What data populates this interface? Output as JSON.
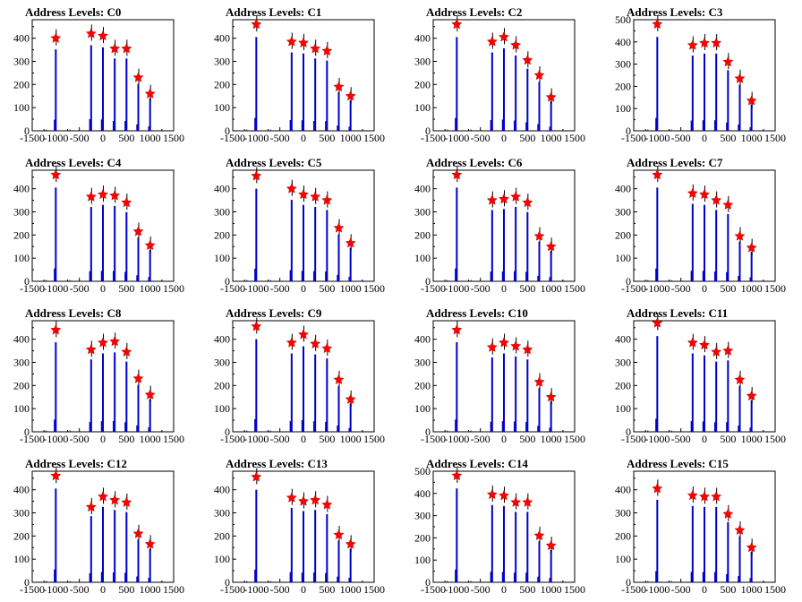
{
  "chart_data": [
    {
      "type": "histogram",
      "title": "Address Levels: C0",
      "xlim": [
        -1500,
        1500
      ],
      "ylim": [
        0,
        480
      ],
      "xticks": [
        "-1500",
        "-1000",
        "-500",
        "0",
        "500",
        "1000",
        "1500"
      ],
      "yticks": [
        "0",
        "100",
        "200",
        "300",
        "400"
      ],
      "peaks": [
        {
          "x": -1000,
          "y": 400
        },
        {
          "x": -250,
          "y": 420
        },
        {
          "x": 0,
          "y": 410
        },
        {
          "x": 250,
          "y": 355
        },
        {
          "x": 500,
          "y": 355
        },
        {
          "x": 750,
          "y": 230
        },
        {
          "x": 1000,
          "y": 160
        }
      ]
    },
    {
      "type": "histogram",
      "title": "Address Levels: C1",
      "xlim": [
        -1500,
        1500
      ],
      "ylim": [
        0,
        480
      ],
      "xticks": [
        "-1500",
        "-1000",
        "-500",
        "0",
        "500",
        "1000",
        "1500"
      ],
      "yticks": [
        "0",
        "100",
        "200",
        "300",
        "400"
      ],
      "peaks": [
        {
          "x": -1000,
          "y": 460
        },
        {
          "x": -250,
          "y": 385
        },
        {
          "x": 0,
          "y": 380
        },
        {
          "x": 250,
          "y": 355
        },
        {
          "x": 500,
          "y": 345
        },
        {
          "x": 750,
          "y": 190
        },
        {
          "x": 1000,
          "y": 150
        }
      ]
    },
    {
      "type": "histogram",
      "title": "Address Levels: C2",
      "xlim": [
        -1500,
        1500
      ],
      "ylim": [
        0,
        480
      ],
      "xticks": [
        "-1500",
        "-1000",
        "-500",
        "0",
        "500",
        "1000",
        "1500"
      ],
      "yticks": [
        "0",
        "100",
        "200",
        "300",
        "400"
      ],
      "peaks": [
        {
          "x": -1000,
          "y": 460
        },
        {
          "x": -250,
          "y": 385
        },
        {
          "x": 0,
          "y": 405
        },
        {
          "x": 250,
          "y": 370
        },
        {
          "x": 500,
          "y": 305
        },
        {
          "x": 750,
          "y": 240
        },
        {
          "x": 1000,
          "y": 145
        }
      ]
    },
    {
      "type": "histogram",
      "title": "Address Levels: C3",
      "xlim": [
        -1500,
        1500
      ],
      "ylim": [
        0,
        500
      ],
      "xticks": [
        "-1500",
        "-1000",
        "-500",
        "0",
        "500",
        "1000",
        "1500"
      ],
      "yticks": [
        "0",
        "100",
        "200",
        "300",
        "400",
        "500"
      ],
      "peaks": [
        {
          "x": -1000,
          "y": 480
        },
        {
          "x": -250,
          "y": 385
        },
        {
          "x": 0,
          "y": 395
        },
        {
          "x": 250,
          "y": 395
        },
        {
          "x": 500,
          "y": 310
        },
        {
          "x": 750,
          "y": 235
        },
        {
          "x": 1000,
          "y": 135
        }
      ]
    },
    {
      "type": "histogram",
      "title": "Address Levels: C4",
      "xlim": [
        -1500,
        1500
      ],
      "ylim": [
        0,
        480
      ],
      "xticks": [
        "-1500",
        "-1000",
        "-500",
        "0",
        "500",
        "1000",
        "1500"
      ],
      "yticks": [
        "0",
        "100",
        "200",
        "300",
        "400"
      ],
      "peaks": [
        {
          "x": -1000,
          "y": 460
        },
        {
          "x": -250,
          "y": 365
        },
        {
          "x": 0,
          "y": 375
        },
        {
          "x": 250,
          "y": 370
        },
        {
          "x": 500,
          "y": 340
        },
        {
          "x": 750,
          "y": 215
        },
        {
          "x": 1000,
          "y": 155
        }
      ]
    },
    {
      "type": "histogram",
      "title": "Address Levels: C5",
      "xlim": [
        -1500,
        1500
      ],
      "ylim": [
        0,
        480
      ],
      "xticks": [
        "-1500",
        "-1000",
        "-500",
        "0",
        "500",
        "1000",
        "1500"
      ],
      "yticks": [
        "0",
        "100",
        "200",
        "300",
        "400"
      ],
      "peaks": [
        {
          "x": -1000,
          "y": 455
        },
        {
          "x": -250,
          "y": 400
        },
        {
          "x": 0,
          "y": 375
        },
        {
          "x": 250,
          "y": 365
        },
        {
          "x": 500,
          "y": 350
        },
        {
          "x": 750,
          "y": 230
        },
        {
          "x": 1000,
          "y": 165
        }
      ]
    },
    {
      "type": "histogram",
      "title": "Address Levels: C6",
      "xlim": [
        -1500,
        1500
      ],
      "ylim": [
        0,
        480
      ],
      "xticks": [
        "-1500",
        "-1000",
        "-500",
        "0",
        "500",
        "1000",
        "1500"
      ],
      "yticks": [
        "0",
        "100",
        "200",
        "300",
        "400"
      ],
      "peaks": [
        {
          "x": -1000,
          "y": 460
        },
        {
          "x": -250,
          "y": 350
        },
        {
          "x": 0,
          "y": 355
        },
        {
          "x": 250,
          "y": 365
        },
        {
          "x": 500,
          "y": 340
        },
        {
          "x": 750,
          "y": 195
        },
        {
          "x": 1000,
          "y": 150
        }
      ]
    },
    {
      "type": "histogram",
      "title": "Address Levels: C7",
      "xlim": [
        -1500,
        1500
      ],
      "ylim": [
        0,
        480
      ],
      "xticks": [
        "-1500",
        "-1000",
        "-500",
        "0",
        "500",
        "1000",
        "1500"
      ],
      "yticks": [
        "0",
        "100",
        "200",
        "300",
        "400"
      ],
      "peaks": [
        {
          "x": -1000,
          "y": 460
        },
        {
          "x": -250,
          "y": 380
        },
        {
          "x": 0,
          "y": 375
        },
        {
          "x": 250,
          "y": 350
        },
        {
          "x": 500,
          "y": 330
        },
        {
          "x": 750,
          "y": 195
        },
        {
          "x": 1000,
          "y": 145
        }
      ]
    },
    {
      "type": "histogram",
      "title": "Address Levels: C8",
      "xlim": [
        -1500,
        1500
      ],
      "ylim": [
        0,
        480
      ],
      "xticks": [
        "-1500",
        "-1000",
        "-500",
        "0",
        "500",
        "1000",
        "1500"
      ],
      "yticks": [
        "0",
        "100",
        "200",
        "300",
        "400"
      ],
      "peaks": [
        {
          "x": -1000,
          "y": 440
        },
        {
          "x": -250,
          "y": 355
        },
        {
          "x": 0,
          "y": 385
        },
        {
          "x": 250,
          "y": 390
        },
        {
          "x": 500,
          "y": 345
        },
        {
          "x": 750,
          "y": 230
        },
        {
          "x": 1000,
          "y": 160
        }
      ]
    },
    {
      "type": "histogram",
      "title": "Address Levels: C9",
      "xlim": [
        -1500,
        1500
      ],
      "ylim": [
        0,
        480
      ],
      "xticks": [
        "-1500",
        "-1000",
        "-500",
        "0",
        "500",
        "1000",
        "1500"
      ],
      "yticks": [
        "0",
        "100",
        "200",
        "300",
        "400"
      ],
      "peaks": [
        {
          "x": -1000,
          "y": 455
        },
        {
          "x": -250,
          "y": 385
        },
        {
          "x": 0,
          "y": 420
        },
        {
          "x": 250,
          "y": 380
        },
        {
          "x": 500,
          "y": 360
        },
        {
          "x": 750,
          "y": 225
        },
        {
          "x": 1000,
          "y": 140
        }
      ]
    },
    {
      "type": "histogram",
      "title": "Address Levels: C10",
      "xlim": [
        -1500,
        1500
      ],
      "ylim": [
        0,
        480
      ],
      "xticks": [
        "-1500",
        "-1000",
        "-500",
        "0",
        "500",
        "1000",
        "1500"
      ],
      "yticks": [
        "0",
        "100",
        "200",
        "300",
        "400"
      ],
      "peaks": [
        {
          "x": -1000,
          "y": 440
        },
        {
          "x": -250,
          "y": 365
        },
        {
          "x": 0,
          "y": 385
        },
        {
          "x": 250,
          "y": 370
        },
        {
          "x": 500,
          "y": 355
        },
        {
          "x": 750,
          "y": 215
        },
        {
          "x": 1000,
          "y": 150
        }
      ]
    },
    {
      "type": "histogram",
      "title": "Address Levels: C11",
      "xlim": [
        -1500,
        1500
      ],
      "ylim": [
        0,
        480
      ],
      "xticks": [
        "-1500",
        "-1000",
        "-500",
        "0",
        "500",
        "1000",
        "1500"
      ],
      "yticks": [
        "0",
        "100",
        "200",
        "300",
        "400"
      ],
      "peaks": [
        {
          "x": -1000,
          "y": 470
        },
        {
          "x": -250,
          "y": 385
        },
        {
          "x": 0,
          "y": 375
        },
        {
          "x": 250,
          "y": 345
        },
        {
          "x": 500,
          "y": 350
        },
        {
          "x": 750,
          "y": 225
        },
        {
          "x": 1000,
          "y": 155
        }
      ]
    },
    {
      "type": "histogram",
      "title": "Address Levels: C12",
      "xlim": [
        -1500,
        1500
      ],
      "ylim": [
        0,
        480
      ],
      "xticks": [
        "-1500",
        "-1000",
        "-500",
        "0",
        "500",
        "1000",
        "1500"
      ],
      "yticks": [
        "0",
        "100",
        "200",
        "300",
        "400"
      ],
      "peaks": [
        {
          "x": -1000,
          "y": 460
        },
        {
          "x": -250,
          "y": 325
        },
        {
          "x": 0,
          "y": 370
        },
        {
          "x": 250,
          "y": 355
        },
        {
          "x": 500,
          "y": 345
        },
        {
          "x": 750,
          "y": 210
        },
        {
          "x": 1000,
          "y": 165
        }
      ]
    },
    {
      "type": "histogram",
      "title": "Address Levels: C13",
      "xlim": [
        -1500,
        1500
      ],
      "ylim": [
        0,
        480
      ],
      "xticks": [
        "-1500",
        "-1000",
        "-500",
        "0",
        "500",
        "1000",
        "1500"
      ],
      "yticks": [
        "0",
        "100",
        "200",
        "300",
        "400"
      ],
      "peaks": [
        {
          "x": -1000,
          "y": 455
        },
        {
          "x": -250,
          "y": 365
        },
        {
          "x": 0,
          "y": 350
        },
        {
          "x": 250,
          "y": 355
        },
        {
          "x": 500,
          "y": 335
        },
        {
          "x": 750,
          "y": 205
        },
        {
          "x": 1000,
          "y": 165
        }
      ]
    },
    {
      "type": "histogram",
      "title": "Address Levels: C14",
      "xlim": [
        -1500,
        1500
      ],
      "ylim": [
        0,
        500
      ],
      "xticks": [
        "-1500",
        "-1000",
        "-500",
        "0",
        "500",
        "1000",
        "1500"
      ],
      "yticks": [
        "0",
        "100",
        "200",
        "300",
        "400",
        "500"
      ],
      "peaks": [
        {
          "x": -1000,
          "y": 480
        },
        {
          "x": -250,
          "y": 395
        },
        {
          "x": 0,
          "y": 390
        },
        {
          "x": 250,
          "y": 360
        },
        {
          "x": 500,
          "y": 360
        },
        {
          "x": 750,
          "y": 210
        },
        {
          "x": 1000,
          "y": 165
        }
      ]
    },
    {
      "type": "histogram",
      "title": "Address Levels: C15",
      "xlim": [
        -1500,
        1500
      ],
      "ylim": [
        0,
        480
      ],
      "xticks": [
        "-1500",
        "-1000",
        "-500",
        "0",
        "500",
        "1000",
        "1500"
      ],
      "yticks": [
        "0",
        "100",
        "200",
        "300",
        "400"
      ],
      "peaks": [
        {
          "x": -1000,
          "y": 405
        },
        {
          "x": -250,
          "y": 375
        },
        {
          "x": 0,
          "y": 370
        },
        {
          "x": 250,
          "y": 370
        },
        {
          "x": 500,
          "y": 295
        },
        {
          "x": 750,
          "y": 225
        },
        {
          "x": 1000,
          "y": 150
        }
      ]
    }
  ],
  "colors": {
    "histogram": "#0000cc",
    "error_bar": "#000000",
    "marker": "#ff0000",
    "marker_edge": "#cc0000"
  }
}
